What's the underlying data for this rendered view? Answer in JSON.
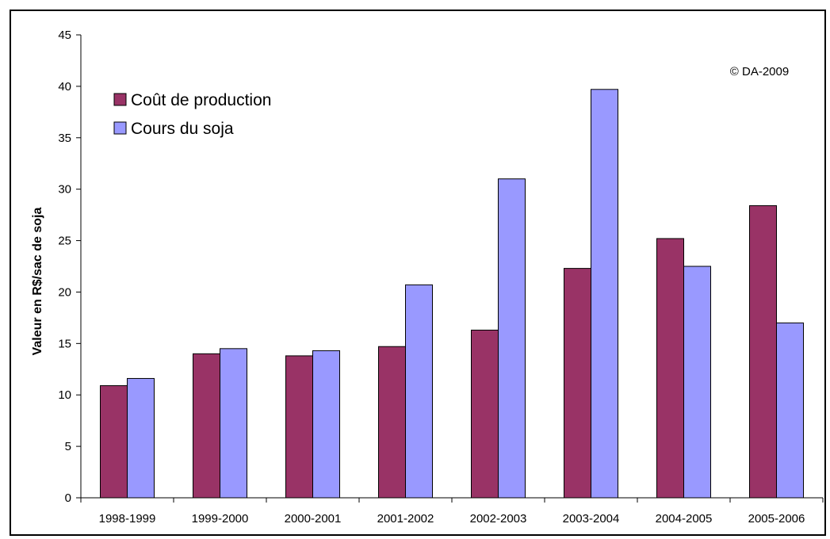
{
  "chart_data": {
    "type": "bar",
    "ylabel": "Valeur en R$/sac de soja",
    "xlabel": "",
    "ylim": [
      0,
      45
    ],
    "yticks": [
      0,
      5,
      10,
      15,
      20,
      25,
      30,
      35,
      40,
      45
    ],
    "categories": [
      "1998-1999",
      "1999-2000",
      "2000-2001",
      "2001-2002",
      "2002-2003",
      "2003-2004",
      "2004-2005",
      "2005-2006"
    ],
    "series": [
      {
        "name": "Coût de production",
        "color": "#993366",
        "values": [
          10.9,
          14.0,
          13.8,
          14.7,
          16.3,
          22.3,
          25.2,
          28.4
        ]
      },
      {
        "name": "Cours du soja",
        "color": "#9999ff",
        "values": [
          11.6,
          14.5,
          14.3,
          20.7,
          31.0,
          39.7,
          22.5,
          17.0
        ]
      }
    ],
    "legend_position": "top-left",
    "grid": false,
    "annotation": "© DA-2009"
  }
}
